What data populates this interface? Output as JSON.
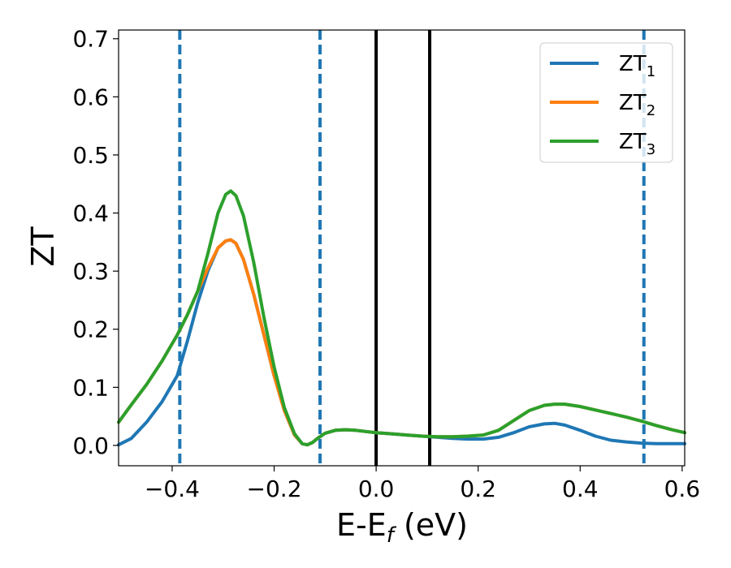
{
  "chart_data": {
    "type": "line",
    "xlabel": "E-E",
    "xlabel_sub": "f",
    "xlabel_unit": " (eV)",
    "ylabel": "ZT",
    "xlim": [
      -0.505,
      0.605
    ],
    "ylim": [
      -0.035,
      0.715
    ],
    "xticks": [
      -0.4,
      -0.2,
      0.0,
      0.2,
      0.4,
      0.6
    ],
    "xtick_labels": [
      "−0.4",
      "−0.2",
      "0.0",
      "0.2",
      "0.4",
      "0.6"
    ],
    "yticks": [
      0.0,
      0.1,
      0.2,
      0.3,
      0.4,
      0.5,
      0.6,
      0.7
    ],
    "ytick_labels": [
      "0.0",
      "0.1",
      "0.2",
      "0.3",
      "0.4",
      "0.5",
      "0.6",
      "0.7"
    ],
    "grid": false,
    "legend_position": "top-right",
    "vlines": [
      {
        "x": -0.385,
        "style": "dashed",
        "color": "#1f77b4"
      },
      {
        "x": -0.11,
        "style": "dashed",
        "color": "#1f77b4"
      },
      {
        "x": 0.0,
        "style": "solid",
        "color": "#000000"
      },
      {
        "x": 0.105,
        "style": "solid",
        "color": "#000000"
      },
      {
        "x": 0.525,
        "style": "dashed",
        "color": "#1f77b4"
      }
    ],
    "series": [
      {
        "name": "ZT",
        "sub": "1",
        "color": "#1f77b4",
        "x": [
          -0.505,
          -0.48,
          -0.45,
          -0.42,
          -0.39,
          -0.37,
          -0.35,
          -0.33,
          -0.31,
          -0.295,
          -0.285,
          -0.275,
          -0.26,
          -0.24,
          -0.22,
          -0.2,
          -0.18,
          -0.16,
          -0.145,
          -0.135,
          -0.125,
          -0.115,
          -0.1,
          -0.08,
          -0.06,
          -0.04,
          -0.02,
          0.0,
          0.03,
          0.06,
          0.09,
          0.12,
          0.15,
          0.18,
          0.21,
          0.24,
          0.27,
          0.3,
          0.33,
          0.35,
          0.37,
          0.4,
          0.43,
          0.46,
          0.49,
          0.52,
          0.55,
          0.58,
          0.605
        ],
        "y": [
          0.001,
          0.012,
          0.04,
          0.075,
          0.12,
          0.18,
          0.245,
          0.3,
          0.34,
          0.352,
          0.354,
          0.348,
          0.32,
          0.26,
          0.19,
          0.12,
          0.06,
          0.018,
          0.003,
          0.001,
          0.005,
          0.012,
          0.021,
          0.026,
          0.027,
          0.026,
          0.024,
          0.022,
          0.02,
          0.018,
          0.016,
          0.014,
          0.012,
          0.011,
          0.011,
          0.014,
          0.022,
          0.032,
          0.037,
          0.038,
          0.035,
          0.026,
          0.016,
          0.009,
          0.006,
          0.004,
          0.003,
          0.003,
          0.003
        ]
      },
      {
        "name": "ZT",
        "sub": "2",
        "color": "#ff7f0e",
        "x": [
          -0.505,
          -0.48,
          -0.45,
          -0.42,
          -0.39,
          -0.37,
          -0.35,
          -0.33,
          -0.31,
          -0.295,
          -0.285,
          -0.275,
          -0.26,
          -0.24,
          -0.22,
          -0.2,
          -0.18,
          -0.16,
          -0.145,
          -0.135,
          -0.125,
          -0.115,
          -0.1,
          -0.08,
          -0.06,
          -0.04,
          -0.02,
          0.0,
          0.03,
          0.06,
          0.09,
          0.12,
          0.15,
          0.18,
          0.21,
          0.24,
          0.27,
          0.3,
          0.33,
          0.35,
          0.37,
          0.4,
          0.43,
          0.46,
          0.49,
          0.52,
          0.55,
          0.58,
          0.605
        ],
        "y": [
          0.04,
          0.07,
          0.105,
          0.145,
          0.19,
          0.225,
          0.265,
          0.305,
          0.34,
          0.352,
          0.354,
          0.348,
          0.32,
          0.26,
          0.19,
          0.12,
          0.06,
          0.018,
          0.003,
          0.001,
          0.005,
          0.012,
          0.021,
          0.026,
          0.027,
          0.026,
          0.024,
          0.022,
          0.02,
          0.018,
          0.016,
          0.015,
          0.015,
          0.016,
          0.018,
          0.026,
          0.043,
          0.06,
          0.069,
          0.071,
          0.071,
          0.067,
          0.061,
          0.055,
          0.049,
          0.042,
          0.034,
          0.027,
          0.022
        ]
      },
      {
        "name": "ZT",
        "sub": "3",
        "color": "#2ca02c",
        "x": [
          -0.505,
          -0.48,
          -0.45,
          -0.42,
          -0.39,
          -0.37,
          -0.35,
          -0.33,
          -0.31,
          -0.295,
          -0.285,
          -0.275,
          -0.26,
          -0.24,
          -0.22,
          -0.2,
          -0.18,
          -0.16,
          -0.145,
          -0.135,
          -0.125,
          -0.115,
          -0.1,
          -0.08,
          -0.06,
          -0.04,
          -0.02,
          0.0,
          0.03,
          0.06,
          0.09,
          0.12,
          0.15,
          0.18,
          0.21,
          0.24,
          0.27,
          0.3,
          0.33,
          0.35,
          0.37,
          0.4,
          0.43,
          0.46,
          0.49,
          0.52,
          0.55,
          0.58,
          0.605
        ],
        "y": [
          0.04,
          0.07,
          0.105,
          0.145,
          0.19,
          0.225,
          0.265,
          0.33,
          0.4,
          0.432,
          0.438,
          0.43,
          0.395,
          0.315,
          0.22,
          0.135,
          0.065,
          0.02,
          0.003,
          0.001,
          0.005,
          0.012,
          0.021,
          0.026,
          0.027,
          0.026,
          0.024,
          0.022,
          0.02,
          0.018,
          0.016,
          0.015,
          0.015,
          0.016,
          0.018,
          0.026,
          0.043,
          0.06,
          0.069,
          0.071,
          0.071,
          0.067,
          0.061,
          0.055,
          0.049,
          0.042,
          0.034,
          0.027,
          0.022
        ]
      }
    ]
  }
}
